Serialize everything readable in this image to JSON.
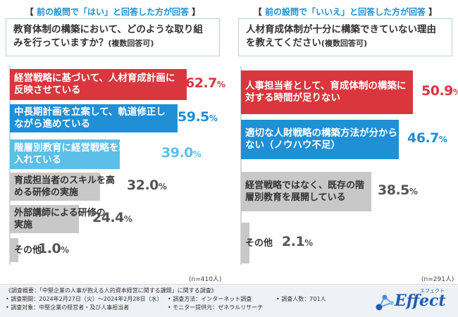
{
  "chart_data": [
    {
      "type": "bar",
      "header": "前の設問で「はい」と回答した方が回答",
      "title": "教育体制の構築において、どのような取り組みを行っていますか？",
      "title_suffix": "(複数回答可)",
      "categories": [
        "経営戦略に基づいて、人材育成計画に反映させている",
        "中長期計画を立案して、軌道修正しながら進めている",
        "階層別教育に経営戦略を取り入れている",
        "育成担当者のスキルを高める研修の実施",
        "外部講師による研修の実施",
        "その他"
      ],
      "values": [
        62.7,
        59.5,
        39.0,
        32.0,
        24.4,
        1.0
      ],
      "value_labels": [
        "62.7%",
        "59.5%",
        "39.0%",
        "32.0%",
        "24.4%",
        "1.0%"
      ],
      "colors": [
        "#d9363e",
        "#1f8fd6",
        "#5bbfe8",
        "#c8c8c8",
        "#c8c8c8",
        "#c8c8c8"
      ],
      "sample": "(n=410人)",
      "xlim": [
        0,
        100
      ]
    },
    {
      "type": "bar",
      "header": "前の設問で「いいえ」と回答した方が回答",
      "title": "人材育成体制が十分に構築できていない理由を教えてください",
      "title_suffix": "(複数回答可)",
      "categories": [
        "人事担当者として、育成体制の構築に対する時間が足りない",
        "適切な人財戦略の構築方法が分からない（ノウハウ不足）",
        "経営戦略ではなく、既存の階層別教育を展開している",
        "その他"
      ],
      "values": [
        50.9,
        46.7,
        38.5,
        2.1
      ],
      "value_labels": [
        "50.9%",
        "46.7%",
        "38.5%",
        "2.1%"
      ],
      "colors": [
        "#d9363e",
        "#1f8fd6",
        "#c8c8c8",
        "#c8c8c8"
      ],
      "sample": "(n=291人)",
      "xlim": [
        0,
        100
      ]
    }
  ],
  "footer": {
    "overview": "《調査概要：「中堅企業の人事が抱える人的資本経営に関する課題」に関する調査》",
    "period": "• 調査期間：2024年2月27日（火）〜2024年2月28日（水）",
    "method": "• 調査方法：インターネット調査",
    "count": "• 調査人数：701人",
    "target": "• 調査対象：中堅企業の経営者・及び人事担当者",
    "provider": "• モニター提供元：ゼネラルリサーチ"
  },
  "logo": {
    "text": "Effect",
    "kana": "エフェクト",
    "color": "#1a5fb4"
  }
}
